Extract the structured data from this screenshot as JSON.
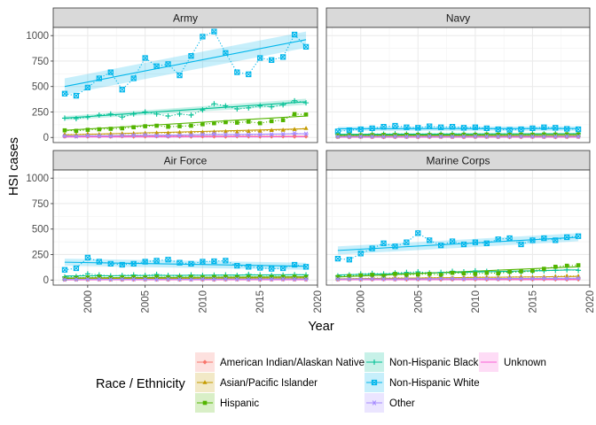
{
  "chart_data": {
    "type": "line",
    "facets": [
      "Army",
      "Navy",
      "Air Force",
      "Marine Corps"
    ],
    "xlabel": "Year",
    "ylabel": "HSI cases",
    "xlim": [
      1997,
      2020
    ],
    "ylim": [
      -50,
      1080
    ],
    "x_ticks": [
      2000,
      2005,
      2010,
      2015,
      2020
    ],
    "y_ticks": [
      0,
      250,
      500,
      750,
      1000
    ],
    "x_tick_labels": [
      "2000",
      "2005",
      "2010",
      "2015",
      "2020"
    ],
    "y_tick_labels": [
      "0",
      "250",
      "500",
      "750",
      "1000"
    ],
    "grid": true,
    "legend_title": "Race / Ethnicity",
    "legend_position": "bottom",
    "x": [
      1998,
      1999,
      2000,
      2001,
      2002,
      2003,
      2004,
      2005,
      2006,
      2007,
      2008,
      2009,
      2010,
      2011,
      2012,
      2013,
      2014,
      2015,
      2016,
      2017,
      2018,
      2019
    ],
    "series_order": [
      "American Indian/Alaskan Native",
      "Non-Hispanic Black",
      "Unknown",
      "Asian/Pacific Islander",
      "Non-Hispanic White",
      "Hispanic",
      "Other"
    ],
    "series": [
      {
        "name": "American Indian/Alaskan Native",
        "color": "#F8766D",
        "marker": "diamond"
      },
      {
        "name": "Asian/Pacific Islander",
        "color": "#C49A00",
        "marker": "triangle"
      },
      {
        "name": "Hispanic",
        "color": "#53B400",
        "marker": "square"
      },
      {
        "name": "Non-Hispanic Black",
        "color": "#00C094",
        "marker": "plus"
      },
      {
        "name": "Non-Hispanic White",
        "color": "#00B6EB",
        "marker": "squarex"
      },
      {
        "name": "Other",
        "color": "#A58AFF",
        "marker": "asterisk"
      },
      {
        "name": "Unknown",
        "color": "#FB61D7",
        "marker": "none"
      }
    ],
    "panels": [
      {
        "facet": "Army",
        "values": {
          "American Indian/Alaskan Native": [
            10,
            12,
            10,
            11,
            9,
            12,
            10,
            11,
            12,
            10,
            11,
            10,
            12,
            11,
            10,
            12,
            11,
            10,
            11,
            12,
            10,
            11
          ],
          "Asian/Pacific Islander": [
            30,
            28,
            35,
            30,
            36,
            38,
            40,
            42,
            45,
            44,
            50,
            48,
            52,
            55,
            58,
            55,
            60,
            62,
            70,
            72,
            80,
            90
          ],
          "Hispanic": [
            70,
            65,
            75,
            80,
            85,
            90,
            100,
            110,
            115,
            105,
            110,
            115,
            130,
            140,
            150,
            145,
            155,
            140,
            160,
            170,
            230,
            225
          ],
          "Non-Hispanic Black": [
            190,
            185,
            200,
            220,
            230,
            200,
            230,
            250,
            230,
            210,
            230,
            220,
            270,
            330,
            310,
            280,
            290,
            310,
            300,
            320,
            360,
            340
          ],
          "Non-Hispanic White": [
            430,
            410,
            490,
            580,
            640,
            470,
            580,
            780,
            700,
            720,
            610,
            800,
            990,
            1040,
            830,
            640,
            620,
            780,
            760,
            790,
            1010,
            890
          ],
          "Other": [
            15,
            12,
            18,
            16,
            14,
            20,
            22,
            25,
            18,
            16,
            20,
            22,
            30,
            35,
            28,
            25,
            26,
            28,
            30,
            32,
            40,
            35
          ],
          "Unknown": [
            5,
            6,
            5,
            7,
            6,
            5,
            8,
            6,
            7,
            5,
            6,
            7,
            5,
            6,
            7,
            8,
            6,
            5,
            7,
            6,
            8,
            7
          ]
        },
        "trend": {
          "American Indian/Alaskan Native": [
            11,
            11
          ],
          "Asian/Pacific Islander": [
            25,
            85
          ],
          "Hispanic": [
            70,
            210
          ],
          "Non-Hispanic Black": [
            190,
            350
          ],
          "Non-Hispanic White": [
            500,
            960
          ],
          "Other": [
            14,
            36
          ],
          "Unknown": [
            6,
            7
          ]
        },
        "bands": {
          "Non-Hispanic White": [
            [
              420,
              580
            ],
            [
              880,
              1040
            ]
          ],
          "Non-Hispanic Black": [
            [
              170,
              210
            ],
            [
              320,
              380
            ]
          ]
        }
      },
      {
        "facet": "Navy",
        "values": {
          "American Indian/Alaskan Native": [
            5,
            4,
            6,
            5,
            4,
            5,
            6,
            4,
            5,
            6,
            5,
            4,
            5,
            6,
            5,
            4,
            5,
            6,
            5,
            4,
            5,
            6
          ],
          "Asian/Pacific Islander": [
            10,
            12,
            11,
            13,
            12,
            14,
            13,
            15,
            14,
            12,
            13,
            15,
            14,
            13,
            15,
            14,
            16,
            15,
            14,
            16,
            15,
            17
          ],
          "Hispanic": [
            20,
            22,
            21,
            23,
            25,
            24,
            26,
            25,
            24,
            26,
            25,
            27,
            26,
            28,
            27,
            26,
            28,
            27,
            29,
            28,
            30,
            29
          ],
          "Non-Hispanic Black": [
            30,
            32,
            31,
            35,
            33,
            36,
            34,
            33,
            35,
            34,
            36,
            35,
            33,
            34,
            36,
            35,
            34,
            36,
            35,
            37,
            36,
            38
          ],
          "Non-Hispanic White": [
            60,
            70,
            80,
            90,
            105,
            115,
            100,
            95,
            110,
            100,
            105,
            95,
            100,
            90,
            80,
            75,
            80,
            90,
            100,
            95,
            85,
            80
          ],
          "Other": [
            8,
            9,
            10,
            9,
            8,
            10,
            9,
            10,
            11,
            10,
            9,
            10,
            11,
            10,
            9,
            10,
            11,
            10,
            9,
            10,
            11,
            10
          ],
          "Unknown": [
            3,
            4,
            3,
            4,
            3,
            4,
            3,
            4,
            3,
            4,
            3,
            4,
            3,
            4,
            3,
            4,
            3,
            4,
            3,
            4,
            3,
            4
          ]
        },
        "trend": {
          "American Indian/Alaskan Native": [
            5,
            5
          ],
          "Asian/Pacific Islander": [
            11,
            16
          ],
          "Hispanic": [
            21,
            29
          ],
          "Non-Hispanic Black": [
            31,
            37
          ],
          "Non-Hispanic White": [
            85,
            88
          ],
          "Other": [
            9,
            10
          ],
          "Unknown": [
            3,
            4
          ]
        },
        "bands": {
          "Non-Hispanic White": [
            [
              65,
              105
            ],
            [
              65,
              110
            ]
          ]
        }
      },
      {
        "facet": "Air Force",
        "values": {
          "American Indian/Alaskan Native": [
            4,
            5,
            4,
            6,
            5,
            4,
            5,
            6,
            5,
            4,
            5,
            6,
            5,
            4,
            5,
            6,
            5,
            4,
            5,
            6,
            5,
            4
          ],
          "Asian/Pacific Islander": [
            10,
            12,
            15,
            20,
            14,
            16,
            18,
            15,
            17,
            14,
            16,
            18,
            15,
            17,
            16,
            18,
            20,
            17,
            19,
            18,
            20,
            22
          ],
          "Hispanic": [
            15,
            20,
            25,
            30,
            22,
            25,
            28,
            25,
            30,
            26,
            28,
            30,
            27,
            29,
            31,
            28,
            30,
            32,
            29,
            31,
            33,
            30
          ],
          "Non-Hispanic Black": [
            30,
            35,
            60,
            50,
            40,
            45,
            50,
            45,
            55,
            45,
            40,
            50,
            45,
            48,
            50,
            45,
            55,
            50,
            45,
            48,
            52,
            50
          ],
          "Non-Hispanic White": [
            100,
            115,
            220,
            180,
            160,
            150,
            160,
            180,
            190,
            200,
            170,
            160,
            180,
            185,
            190,
            140,
            130,
            120,
            110,
            115,
            150,
            130
          ],
          "Other": [
            5,
            6,
            7,
            8,
            6,
            7,
            8,
            7,
            6,
            8,
            7,
            6,
            8,
            7,
            9,
            8,
            7,
            9,
            8,
            10,
            9,
            8
          ],
          "Unknown": [
            2,
            3,
            2,
            3,
            2,
            3,
            2,
            3,
            2,
            3,
            2,
            3,
            2,
            3,
            2,
            3,
            2,
            3,
            2,
            3,
            2,
            3
          ]
        },
        "trend": {
          "American Indian/Alaskan Native": [
            5,
            5
          ],
          "Asian/Pacific Islander": [
            12,
            21
          ],
          "Hispanic": [
            20,
            32
          ],
          "Non-Hispanic Black": [
            40,
            52
          ],
          "Non-Hispanic White": [
            175,
            135
          ],
          "Other": [
            6,
            9
          ],
          "Unknown": [
            2,
            3
          ]
        },
        "bands": {
          "Non-Hispanic White": [
            [
              140,
              210
            ],
            [
              100,
              170
            ]
          ]
        }
      },
      {
        "facet": "Marine Corps",
        "values": {
          "American Indian/Alaskan Native": [
            5,
            6,
            5,
            6,
            7,
            6,
            5,
            7,
            6,
            5,
            6,
            7,
            6,
            5,
            7,
            6,
            5,
            6,
            7,
            6,
            5,
            6
          ],
          "Asian/Pacific Islander": [
            10,
            12,
            15,
            20,
            18,
            22,
            20,
            18,
            25,
            22,
            20,
            25,
            30,
            28,
            25,
            30,
            32,
            28,
            30,
            35,
            40,
            38
          ],
          "Hispanic": [
            30,
            40,
            45,
            50,
            40,
            60,
            50,
            55,
            60,
            50,
            70,
            65,
            60,
            70,
            65,
            80,
            85,
            90,
            110,
            130,
            140,
            145
          ],
          "Non-Hispanic Black": [
            40,
            50,
            60,
            65,
            60,
            70,
            75,
            80,
            70,
            75,
            85,
            80,
            90,
            85,
            80,
            75,
            80,
            85,
            90,
            95,
            100,
            95
          ],
          "Non-Hispanic White": [
            210,
            200,
            260,
            310,
            360,
            330,
            370,
            460,
            390,
            340,
            380,
            350,
            370,
            360,
            400,
            410,
            350,
            390,
            410,
            390,
            420,
            430
          ],
          "Other": [
            8,
            10,
            9,
            12,
            11,
            10,
            13,
            12,
            11,
            14,
            13,
            12,
            15,
            14,
            13,
            16,
            15,
            14,
            17,
            16,
            15,
            18
          ],
          "Unknown": [
            3,
            4,
            3,
            4,
            3,
            4,
            3,
            4,
            3,
            4,
            3,
            4,
            3,
            4,
            3,
            4,
            3,
            4,
            3,
            4,
            3,
            4
          ]
        },
        "trend": {
          "American Indian/Alaskan Native": [
            6,
            6
          ],
          "Asian/Pacific Islander": [
            12,
            35
          ],
          "Hispanic": [
            30,
            130
          ],
          "Non-Hispanic Black": [
            50,
            100
          ],
          "Non-Hispanic White": [
            290,
            420
          ],
          "Other": [
            9,
            17
          ],
          "Unknown": [
            3,
            4
          ]
        },
        "bands": {
          "Non-Hispanic White": [
            [
              250,
              330
            ],
            [
              380,
              460
            ]
          ]
        }
      }
    ]
  }
}
